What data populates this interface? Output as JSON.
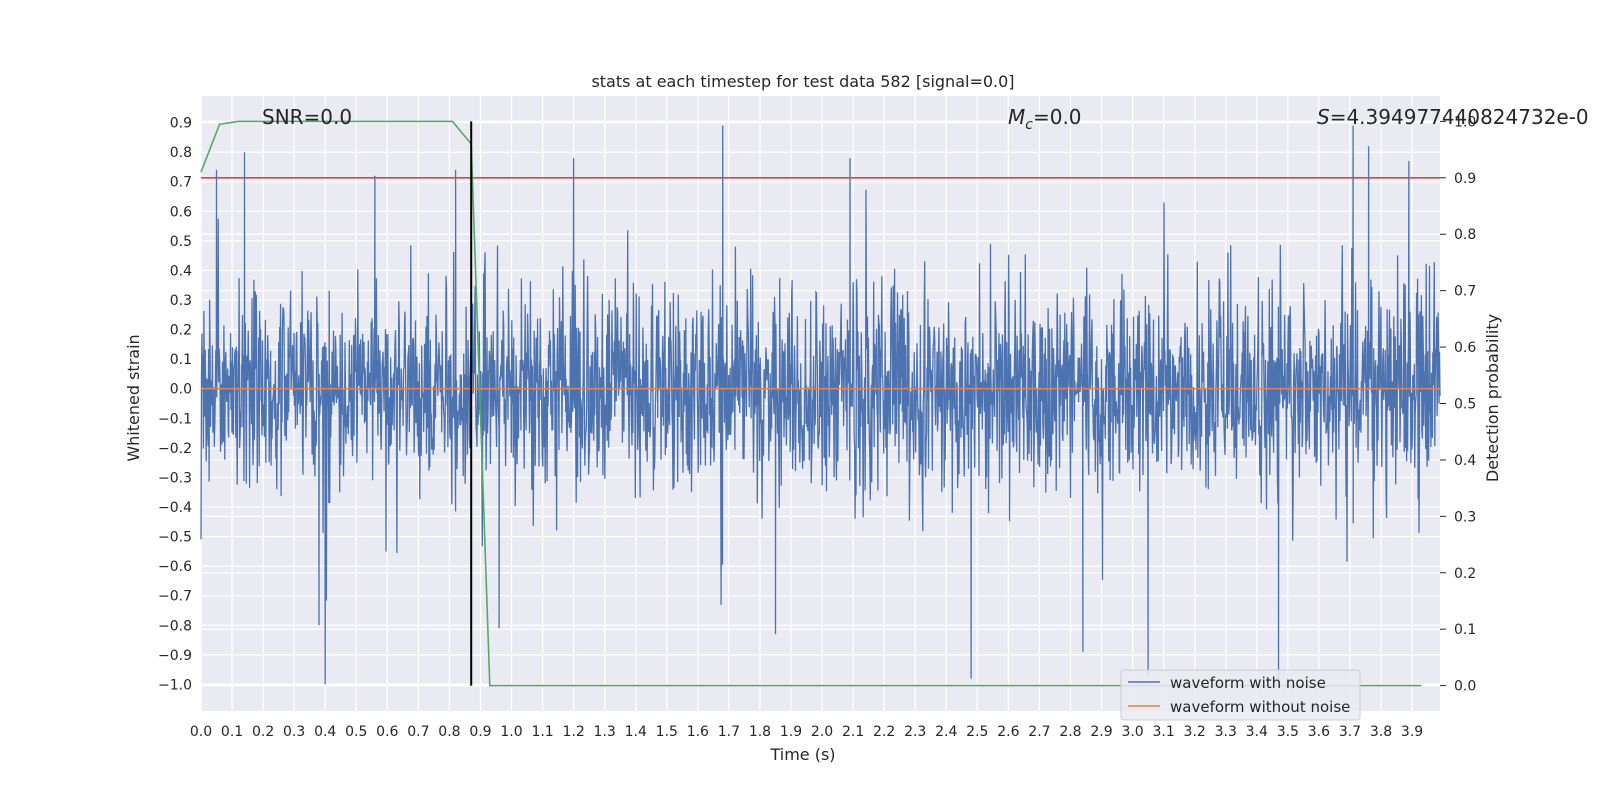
{
  "chart_data": {
    "type": "line",
    "title": "stats at each timestep for test data 582 [signal=0.0]",
    "xlabel": "Time (s)",
    "ylabel": "Whitened strain",
    "y2label": "Detection probability",
    "xlim": [
      0.0,
      3.99
    ],
    "ylim": [
      -1.09,
      0.99
    ],
    "y2lim": [
      -0.045,
      1.045
    ],
    "xticks": [
      "0.0",
      "0.1",
      "0.2",
      "0.3",
      "0.4",
      "0.5",
      "0.6",
      "0.7",
      "0.8",
      "0.9",
      "1.0",
      "1.1",
      "1.2",
      "1.3",
      "1.4",
      "1.5",
      "1.6",
      "1.7",
      "1.8",
      "1.9",
      "2.0",
      "2.1",
      "2.2",
      "2.3",
      "2.4",
      "2.5",
      "2.6",
      "2.7",
      "2.8",
      "2.9",
      "3.0",
      "3.1",
      "3.2",
      "3.3",
      "3.4",
      "3.5",
      "3.6",
      "3.7",
      "3.8",
      "3.9"
    ],
    "yticks": [
      "0.9",
      "0.8",
      "0.7",
      "0.6",
      "0.5",
      "0.4",
      "0.3",
      "0.2",
      "0.1",
      "0.0",
      "−0.1",
      "−0.2",
      "−0.3",
      "−0.4",
      "−0.5",
      "−0.6",
      "−0.7",
      "−0.8",
      "−0.9",
      "−1.0"
    ],
    "y2ticks": [
      "0.0",
      "0.1",
      "0.2",
      "0.3",
      "0.4",
      "0.5",
      "0.6",
      "0.7",
      "0.8",
      "0.9",
      "1.0"
    ],
    "annotations": {
      "snr": "SNR=0.0",
      "mc_symbol": "M",
      "mc_sub": "c",
      "mc_value": "=0.0",
      "s_symbol": "S",
      "s_value": "=4.394977440824732e-0"
    },
    "series": [
      {
        "name": "waveform with noise",
        "color": "#4c72b0",
        "axis": "left",
        "noise_amplitude": 0.3,
        "value_range": [
          -1.0,
          0.9
        ],
        "spikes": [
          {
            "t": 0.05,
            "v": 0.74
          },
          {
            "t": 0.14,
            "v": 0.8
          },
          {
            "t": 0.4,
            "v": -1.0
          },
          {
            "t": 0.38,
            "v": -0.8
          },
          {
            "t": 0.56,
            "v": 0.72
          },
          {
            "t": 0.82,
            "v": 0.74
          },
          {
            "t": 1.68,
            "v": 0.89
          },
          {
            "t": 1.2,
            "v": 0.78
          },
          {
            "t": 1.85,
            "v": -0.83
          },
          {
            "t": 2.09,
            "v": 0.78
          },
          {
            "t": 2.48,
            "v": -0.98
          },
          {
            "t": 2.84,
            "v": -0.89
          },
          {
            "t": 3.05,
            "v": -0.97
          },
          {
            "t": 3.47,
            "v": -1.0
          },
          {
            "t": 3.71,
            "v": 0.89
          },
          {
            "t": 3.76,
            "v": 0.82
          },
          {
            "t": 3.89,
            "v": 0.77
          },
          {
            "t": 0.96,
            "v": -0.81
          }
        ]
      },
      {
        "name": "waveform without noise",
        "color": "#dd8452",
        "axis": "left",
        "x": [
          0.0,
          3.99
        ],
        "y": [
          0.0,
          0.0
        ]
      },
      {
        "name": "detection probability",
        "color": "#55a868",
        "axis": "right",
        "x": [
          0.0,
          0.06,
          0.12,
          0.18,
          0.81,
          0.87,
          0.93,
          3.93
        ],
        "y": [
          0.91,
          0.995,
          1.0,
          1.0,
          1.0,
          0.96,
          0.0,
          0.0
        ]
      },
      {
        "name": "threshold",
        "color": "#c44e52",
        "axis": "right",
        "x": [
          0.0,
          3.99
        ],
        "y": [
          0.9,
          0.9
        ]
      },
      {
        "name": "detection time marker",
        "color": "#000000",
        "axis": "right",
        "x": [
          0.87,
          0.87
        ],
        "y": [
          0.0,
          1.0
        ]
      }
    ],
    "legend": {
      "position": "lower-right",
      "entries": [
        "waveform with noise",
        "waveform without noise"
      ]
    }
  }
}
